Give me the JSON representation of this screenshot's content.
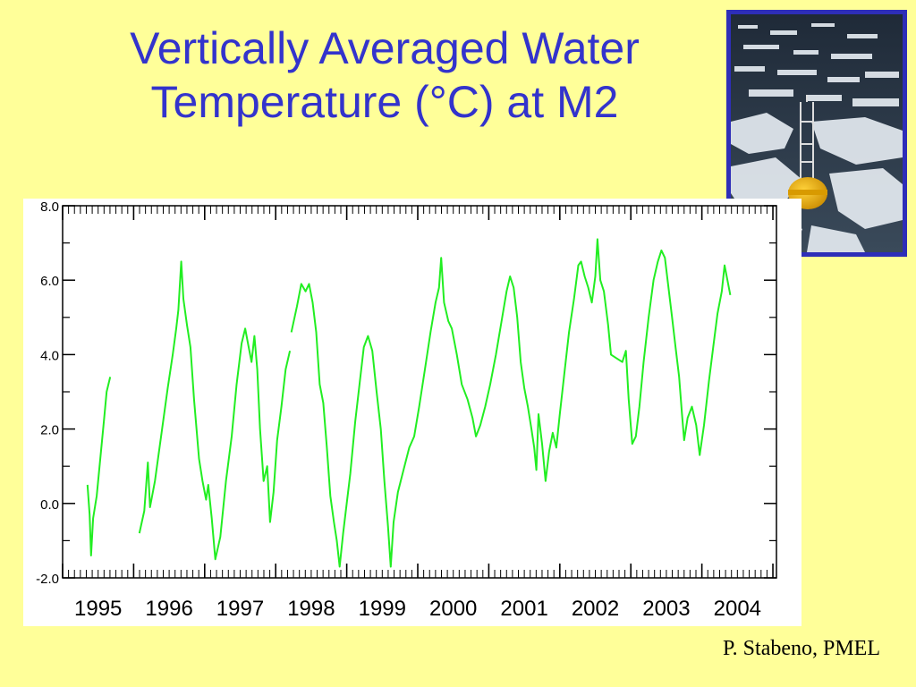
{
  "title_lines": [
    "Vertically Averaged Water",
    "Temperature (°C) at M2"
  ],
  "credit": "P. Stabeno, PMEL",
  "photo": {
    "icon": "mooring-buoy-in-sea-ice-photo",
    "border_color": "#2E2EB8"
  },
  "colors": {
    "background": "#FFFF99",
    "title": "#3333CC",
    "series": "#22EE22",
    "frame": "#000000"
  },
  "chart_data": {
    "type": "line",
    "title": "Vertically Averaged Water Temperature (°C) at M2",
    "xlabel": "",
    "ylabel": "",
    "ylim": [
      -2.0,
      8.0
    ],
    "yticks": [
      "8.0",
      "6.0",
      "4.0",
      "2.0",
      "0.0",
      "-2.0"
    ],
    "xlim": [
      1994.5,
      2004.55
    ],
    "xticks": [
      "1995",
      "1996",
      "1997",
      "1998",
      "1999",
      "2000",
      "2001",
      "2002",
      "2003",
      "2004"
    ],
    "grid": false,
    "series": [
      {
        "name": "",
        "segments": [
          [
            [
              1994.85,
              0.5
            ],
            [
              1994.88,
              -0.3
            ],
            [
              1994.9,
              -1.4
            ],
            [
              1994.93,
              -0.4
            ],
            [
              1994.98,
              0.2
            ],
            [
              1995.03,
              1.2
            ],
            [
              1995.08,
              2.2
            ],
            [
              1995.12,
              3.0
            ],
            [
              1995.17,
              3.4
            ]
          ],
          [
            [
              1995.58,
              -0.8
            ],
            [
              1995.65,
              -0.2
            ],
            [
              1995.7,
              1.1
            ],
            [
              1995.73,
              -0.1
            ],
            [
              1995.8,
              0.6
            ],
            [
              1995.9,
              2.0
            ],
            [
              1995.98,
              3.1
            ],
            [
              1996.05,
              4.0
            ],
            [
              1996.1,
              4.7
            ],
            [
              1996.13,
              5.2
            ],
            [
              1996.17,
              6.5
            ],
            [
              1996.2,
              5.5
            ],
            [
              1996.25,
              4.8
            ],
            [
              1996.3,
              4.2
            ],
            [
              1996.35,
              2.8
            ],
            [
              1996.42,
              1.2
            ],
            [
              1996.47,
              0.6
            ],
            [
              1996.52,
              0.1
            ],
            [
              1996.55,
              0.5
            ],
            [
              1996.6,
              -0.4
            ],
            [
              1996.65,
              -1.5
            ],
            [
              1996.72,
              -0.9
            ],
            [
              1996.8,
              0.6
            ],
            [
              1996.88,
              1.8
            ],
            [
              1996.95,
              3.2
            ],
            [
              1997.02,
              4.3
            ],
            [
              1997.07,
              4.7
            ],
            [
              1997.12,
              4.2
            ],
            [
              1997.16,
              3.8
            ],
            [
              1997.2,
              4.5
            ],
            [
              1997.24,
              3.6
            ],
            [
              1997.28,
              2.0
            ],
            [
              1997.33,
              0.6
            ],
            [
              1997.38,
              1.0
            ],
            [
              1997.42,
              -0.5
            ],
            [
              1997.47,
              0.3
            ],
            [
              1997.52,
              1.7
            ],
            [
              1997.58,
              2.6
            ],
            [
              1997.64,
              3.6
            ],
            [
              1997.7,
              4.1
            ]
          ],
          [
            [
              1997.72,
              4.6
            ],
            [
              1997.8,
              5.3
            ],
            [
              1997.86,
              5.9
            ],
            [
              1997.92,
              5.7
            ],
            [
              1997.97,
              5.9
            ],
            [
              1998.02,
              5.4
            ],
            [
              1998.07,
              4.6
            ],
            [
              1998.12,
              3.2
            ],
            [
              1998.17,
              2.7
            ],
            [
              1998.22,
              1.5
            ],
            [
              1998.27,
              0.2
            ],
            [
              1998.32,
              -0.5
            ],
            [
              1998.36,
              -1.0
            ],
            [
              1998.4,
              -1.7
            ],
            [
              1998.45,
              -0.8
            ],
            [
              1998.5,
              0.0
            ],
            [
              1998.55,
              0.8
            ],
            [
              1998.62,
              2.2
            ],
            [
              1998.68,
              3.2
            ],
            [
              1998.74,
              4.2
            ],
            [
              1998.8,
              4.5
            ],
            [
              1998.86,
              4.1
            ],
            [
              1998.92,
              3.0
            ],
            [
              1998.98,
              2.0
            ],
            [
              1999.03,
              0.6
            ],
            [
              1999.08,
              -0.6
            ],
            [
              1999.12,
              -1.7
            ],
            [
              1999.16,
              -0.5
            ],
            [
              1999.22,
              0.3
            ],
            [
              1999.3,
              0.9
            ],
            [
              1999.38,
              1.5
            ],
            [
              1999.45,
              1.8
            ],
            [
              1999.52,
              2.6
            ],
            [
              1999.6,
              3.6
            ],
            [
              1999.68,
              4.6
            ],
            [
              1999.75,
              5.4
            ],
            [
              1999.8,
              5.8
            ],
            [
              1999.83,
              6.6
            ],
            [
              1999.87,
              5.4
            ],
            [
              1999.93,
              4.9
            ],
            [
              1999.98,
              4.7
            ],
            [
              2000.05,
              4.0
            ],
            [
              2000.12,
              3.2
            ],
            [
              2000.2,
              2.8
            ],
            [
              2000.27,
              2.3
            ],
            [
              2000.32,
              1.8
            ],
            [
              2000.38,
              2.1
            ],
            [
              2000.45,
              2.6
            ],
            [
              2000.52,
              3.2
            ],
            [
              2000.6,
              4.0
            ],
            [
              2000.68,
              4.9
            ],
            [
              2000.75,
              5.7
            ],
            [
              2000.8,
              6.1
            ],
            [
              2000.85,
              5.8
            ],
            [
              2000.9,
              5.0
            ],
            [
              2000.95,
              3.8
            ],
            [
              2001.0,
              3.1
            ],
            [
              2001.05,
              2.6
            ],
            [
              2001.1,
              2.0
            ],
            [
              2001.14,
              1.5
            ],
            [
              2001.17,
              0.9
            ],
            [
              2001.2,
              2.4
            ],
            [
              2001.25,
              1.6
            ],
            [
              2001.3,
              0.6
            ],
            [
              2001.35,
              1.4
            ],
            [
              2001.4,
              1.9
            ],
            [
              2001.45,
              1.5
            ],
            [
              2001.5,
              2.4
            ],
            [
              2001.57,
              3.6
            ],
            [
              2001.63,
              4.6
            ],
            [
              2001.7,
              5.5
            ],
            [
              2001.76,
              6.4
            ],
            [
              2001.8,
              6.5
            ],
            [
              2001.85,
              6.1
            ],
            [
              2001.9,
              5.8
            ],
            [
              2001.95,
              5.4
            ],
            [
              2002.0,
              6.1
            ],
            [
              2002.03,
              7.1
            ],
            [
              2002.07,
              6.0
            ],
            [
              2002.12,
              5.7
            ],
            [
              2002.18,
              4.8
            ],
            [
              2002.22,
              4.0
            ],
            [
              2002.3,
              3.9
            ],
            [
              2002.38,
              3.8
            ],
            [
              2002.43,
              4.1
            ],
            [
              2002.47,
              2.8
            ],
            [
              2002.52,
              1.6
            ],
            [
              2002.57,
              1.8
            ],
            [
              2002.62,
              2.6
            ],
            [
              2002.68,
              3.8
            ],
            [
              2002.75,
              5.0
            ],
            [
              2002.82,
              6.0
            ],
            [
              2002.88,
              6.5
            ],
            [
              2002.93,
              6.8
            ],
            [
              2002.98,
              6.6
            ],
            [
              2003.03,
              5.8
            ],
            [
              2003.08,
              5.0
            ],
            [
              2003.13,
              4.2
            ],
            [
              2003.18,
              3.4
            ],
            [
              2003.22,
              2.4
            ],
            [
              2003.25,
              1.7
            ],
            [
              2003.3,
              2.3
            ],
            [
              2003.36,
              2.6
            ],
            [
              2003.42,
              2.1
            ],
            [
              2003.47,
              1.3
            ],
            [
              2003.53,
              2.1
            ],
            [
              2003.6,
              3.3
            ],
            [
              2003.66,
              4.2
            ],
            [
              2003.72,
              5.1
            ],
            [
              2003.78,
              5.7
            ],
            [
              2003.82,
              6.4
            ],
            [
              2003.86,
              6.0
            ],
            [
              2003.9,
              5.6
            ]
          ]
        ]
      }
    ]
  }
}
